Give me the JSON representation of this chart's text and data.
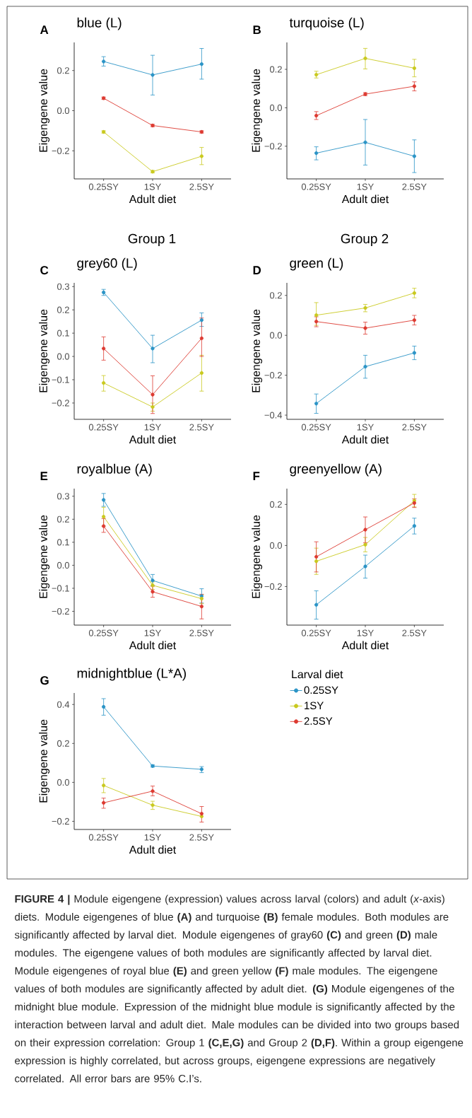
{
  "chart_data": [
    {
      "type": "line",
      "title": "blue (L)",
      "xlabel": "Adult diet",
      "ylabel": "Eigengene value",
      "annotations": [
        "A"
      ],
      "categories": [
        "0.25SY",
        "1SY",
        "2.5SY"
      ],
      "marker": "circle",
      "line_style": "solid",
      "ylim": [
        -0.34,
        0.34
      ],
      "yticks": [
        {
          "value": -0.2,
          "label": "−0.2"
        },
        {
          "value": 0,
          "label": "0.0"
        },
        0.2
      ],
      "series": [
        {
          "color": "#2b94c6",
          "values": [
            0.245,
            0.178,
            0.232
          ],
          "errors": [
            [
              0.222,
              0.269
            ],
            [
              0.078,
              0.276
            ],
            [
              0.157,
              0.31
            ]
          ]
        },
        {
          "color": "#c9c91f",
          "values": [
            -0.106,
            -0.304,
            -0.227
          ],
          "errors": [
            0.006,
            0.006,
            [
              -0.269,
              -0.183
            ]
          ]
        },
        {
          "color": "#dd3a31",
          "values": [
            0.062,
            -0.074,
            -0.106
          ],
          "errors": [
            0.006,
            0.006,
            0.006
          ]
        }
      ]
    },
    {
      "type": "line",
      "title": "turquoise (L)",
      "xlabel": "Adult diet",
      "ylabel": "Eigengene value",
      "annotations": [
        "B"
      ],
      "categories": [
        "0.25SY",
        "1SY",
        "2.5SY"
      ],
      "marker": "circle",
      "line_style": "solid",
      "ylim": [
        -0.37,
        0.34
      ],
      "yticks": [
        {
          "value": -0.2,
          "label": "−0.2"
        },
        {
          "value": 0,
          "label": "0.0"
        },
        0.2
      ],
      "series": [
        {
          "color": "#2b94c6",
          "values": [
            -0.236,
            -0.18,
            -0.252
          ],
          "errors": [
            [
              -0.271,
              -0.203
            ],
            [
              -0.298,
              -0.061
            ],
            [
              -0.337,
              -0.167
            ]
          ]
        },
        {
          "color": "#c9c91f",
          "values": [
            0.172,
            0.257,
            0.206
          ],
          "errors": [
            [
              0.155,
              0.19
            ],
            [
              0.202,
              0.309
            ],
            [
              0.161,
              0.252
            ]
          ]
        },
        {
          "color": "#dd3a31",
          "values": [
            -0.041,
            0.071,
            0.112
          ],
          "errors": [
            [
              -0.061,
              -0.02
            ],
            0.008,
            [
              0.088,
              0.135
            ]
          ]
        }
      ]
    },
    {
      "type": "line",
      "title": "grey60 (L)",
      "xlabel": "Adult diet",
      "ylabel": "Eigengene value",
      "annotations": [
        "C",
        "Group 1"
      ],
      "categories": [
        "0.25SY",
        "1SY",
        "2.5SY"
      ],
      "marker": "circle",
      "line_style": "solid",
      "ylim": [
        -0.27,
        0.316
      ],
      "yticks": [
        {
          "value": -0.2,
          "label": "−0.2"
        },
        {
          "value": -0.1,
          "label": "−0.1"
        },
        {
          "value": 0,
          "label": "0.0"
        },
        0.1,
        0.2,
        0.3
      ],
      "series": [
        {
          "color": "#2b94c6",
          "values": [
            0.275,
            0.034,
            0.156
          ],
          "errors": [
            [
              0.262,
              0.288
            ],
            [
              -0.027,
              0.091
            ],
            [
              0.129,
              0.187
            ]
          ]
        },
        {
          "color": "#c9c91f",
          "values": [
            -0.114,
            -0.217,
            -0.071
          ],
          "errors": [
            [
              -0.149,
              -0.082
            ],
            [
              -0.235,
              -0.2
            ],
            [
              -0.149,
              0.005
            ]
          ]
        },
        {
          "color": "#dd3a31",
          "values": [
            0.034,
            -0.164,
            0.078
          ],
          "errors": [
            [
              -0.016,
              0.084
            ],
            [
              -0.245,
              -0.083
            ],
            [
              0.0,
              0.165
            ]
          ]
        }
      ]
    },
    {
      "type": "line",
      "title": "green (L)",
      "xlabel": "Adult diet",
      "ylabel": "Eigengene value",
      "annotations": [
        "D",
        "Group 2"
      ],
      "categories": [
        "0.25SY",
        "1SY",
        "2.5SY"
      ],
      "marker": "circle",
      "line_style": "solid",
      "ylim": [
        -0.421,
        0.263
      ],
      "yticks": [
        {
          "value": -0.4,
          "label": "−0.4"
        },
        {
          "value": -0.2,
          "label": "−0.2"
        },
        {
          "value": 0,
          "label": "0.0"
        },
        0.2
      ],
      "series": [
        {
          "color": "#2b94c6",
          "values": [
            -0.342,
            -0.157,
            -0.088
          ],
          "errors": [
            [
              -0.391,
              -0.294
            ],
            [
              -0.215,
              -0.1
            ],
            [
              -0.122,
              -0.054
            ]
          ]
        },
        {
          "color": "#c9c91f",
          "values": [
            0.101,
            0.137,
            0.212
          ],
          "errors": [
            [
              0.05,
              0.164
            ],
            [
              0.118,
              0.155
            ],
            [
              0.188,
              0.236
            ]
          ]
        },
        {
          "color": "#dd3a31",
          "values": [
            0.069,
            0.036,
            0.076
          ],
          "errors": [
            [
              0.043,
              0.093
            ],
            [
              0.006,
              0.066
            ],
            [
              0.052,
              0.1
            ]
          ]
        }
      ]
    },
    {
      "type": "line",
      "title": "royalblue (A)",
      "xlabel": "Adult diet",
      "ylabel": "Eigengene value",
      "annotations": [
        "E"
      ],
      "categories": [
        "0.25SY",
        "1SY",
        "2.5SY"
      ],
      "marker": "circle",
      "line_style": "solid",
      "ylim": [
        -0.26,
        0.333
      ],
      "yticks": [
        {
          "value": -0.2,
          "label": "−0.2"
        },
        {
          "value": -0.1,
          "label": "−0.1"
        },
        {
          "value": 0,
          "label": "0.0"
        },
        0.1,
        0.2,
        0.3
      ],
      "series": [
        {
          "color": "#2b94c6",
          "values": [
            0.284,
            -0.066,
            -0.134
          ],
          "errors": [
            [
              0.256,
              0.312
            ],
            [
              -0.089,
              -0.04
            ],
            [
              -0.164,
              -0.102
            ]
          ]
        },
        {
          "color": "#c9c91f",
          "values": [
            0.211,
            -0.087,
            -0.145
          ],
          "errors": [
            [
              0.17,
              0.252
            ],
            [
              -0.105,
              -0.072
            ],
            [
              -0.167,
              -0.128
            ]
          ]
        },
        {
          "color": "#dd3a31",
          "values": [
            0.17,
            -0.115,
            -0.179
          ],
          "errors": [
            [
              0.143,
              0.203
            ],
            [
              -0.139,
              -0.091
            ],
            [
              -0.233,
              -0.126
            ]
          ]
        }
      ]
    },
    {
      "type": "line",
      "title": "greenyellow (A)",
      "xlabel": "Adult diet",
      "ylabel": "Eigengene value",
      "annotations": [
        "F"
      ],
      "categories": [
        "0.25SY",
        "1SY",
        "2.5SY"
      ],
      "marker": "circle",
      "line_style": "solid",
      "ylim": [
        -0.388,
        0.277
      ],
      "yticks": [
        {
          "value": -0.2,
          "label": "−0.2"
        },
        {
          "value": 0,
          "label": "0.0"
        },
        0.2
      ],
      "series": [
        {
          "color": "#2b94c6",
          "values": [
            -0.289,
            -0.102,
            0.095
          ],
          "errors": [
            [
              -0.359,
              -0.221
            ],
            [
              -0.159,
              -0.047
            ],
            [
              0.056,
              0.133
            ]
          ]
        },
        {
          "color": "#c9c91f",
          "values": [
            -0.077,
            0.004,
            0.218
          ],
          "errors": [
            [
              -0.141,
              -0.013
            ],
            [
              -0.031,
              0.039
            ],
            [
              0.188,
              0.249
            ]
          ]
        },
        {
          "color": "#dd3a31",
          "values": [
            -0.055,
            0.077,
            0.207
          ],
          "errors": [
            [
              -0.129,
              0.018
            ],
            [
              0.013,
              0.139
            ],
            [
              0.185,
              0.227
            ]
          ]
        }
      ]
    },
    {
      "type": "line",
      "title": "midnightblue (L*A)",
      "xlabel": "Adult diet",
      "ylabel": "Eigengene value",
      "annotations": [
        "G"
      ],
      "categories": [
        "0.25SY",
        "1SY",
        "2.5SY"
      ],
      "marker": "circle",
      "line_style": "solid",
      "ylim": [
        -0.242,
        0.459
      ],
      "yticks": [
        {
          "value": -0.2,
          "label": "−0.2"
        },
        {
          "value": 0,
          "label": "0.0"
        },
        0.2,
        0.4
      ],
      "legend": "right",
      "legend_title": "Larval diet",
      "series": [
        {
          "name": "0.25SY",
          "color": "#2b94c6",
          "values": [
            0.388,
            0.084,
            0.067
          ],
          "errors": [
            [
              0.345,
              0.43
            ],
            0.006,
            [
              0.05,
              0.081
            ]
          ]
        },
        {
          "name": "1SY",
          "color": "#c9c91f",
          "values": [
            -0.016,
            -0.117,
            -0.175
          ],
          "errors": [
            [
              -0.053,
              0.02
            ],
            [
              -0.139,
              -0.097
            ],
            null
          ]
        },
        {
          "name": "2.5SY",
          "color": "#dd3a31",
          "values": [
            -0.105,
            -0.045,
            -0.161
          ],
          "errors": [
            [
              -0.133,
              -0.081
            ],
            [
              -0.069,
              -0.019
            ],
            [
              -0.204,
              -0.124
            ]
          ]
        }
      ]
    },
    {
      "type": "other",
      "annotations": [
        "**FIGURE 4 |** Module eigengene (expression) values across larval (colors) and adult (*x*-axis) diets. Module eigengenes of blue **(A)** and turquoise **(B)** female modules. Both modules are significantly affected by larval diet. Module eigengenes of gray60 **(C)** and green **(D)** male modules. The eigengene values of both modules are significantly affected by larval diet. Module eigengenes of royal blue **(E)** and green yellow **(F)** male modules. The eigengene values of both modules are significantly affected by adult diet. **(G)** Module eigengenes of the midnight blue module. Expression of the midnight blue module is significantly affected by the interaction between larval and adult diet. Male modules can be divided into two groups based on their expression correlation: Group 1 **(C,E,G)** and Group 2 **(D,F)**. Within a group eigengene expression is highly correlated, but across groups, eigengene expressions are negatively correlated. All error bars are 95% C.I’s."
      ]
    }
  ]
}
